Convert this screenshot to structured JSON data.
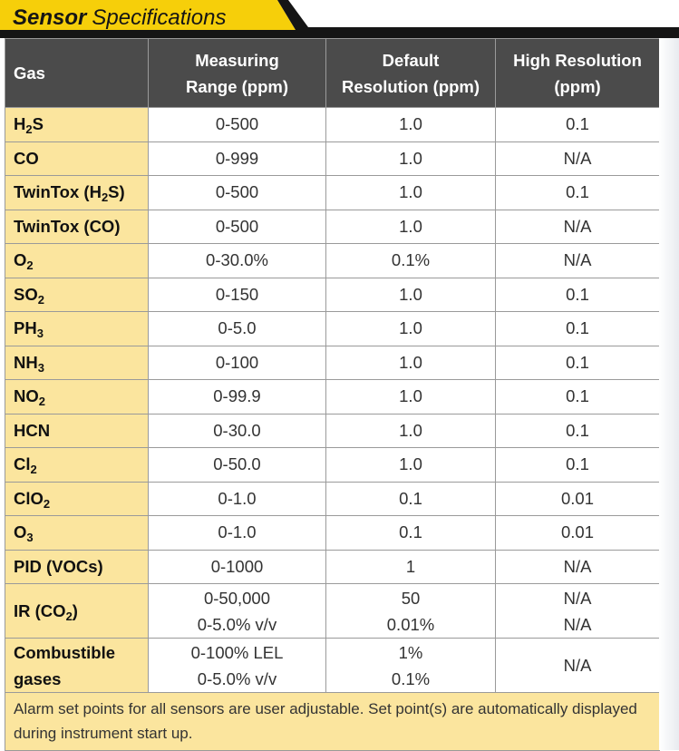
{
  "title": {
    "bold": "Sensor",
    "rest": "Specifications"
  },
  "colors": {
    "header_bg": "#4b4b4b",
    "gas_col_bg": "#fbe59e",
    "banner_yellow": "#f6cf0a",
    "banner_black": "#151515"
  },
  "headers": {
    "gas": "Gas",
    "measuring_range": [
      "Measuring",
      "Range (ppm)"
    ],
    "default_resolution": [
      "Default",
      "Resolution (ppm)"
    ],
    "high_resolution": [
      "High Resolution",
      "(ppm)"
    ]
  },
  "rows": [
    {
      "gas": [
        "H",
        "2",
        "S"
      ],
      "range": [
        "0-500"
      ],
      "default": [
        "1.0"
      ],
      "high": [
        "0.1"
      ]
    },
    {
      "gas": [
        "CO"
      ],
      "range": [
        "0-999"
      ],
      "default": [
        "1.0"
      ],
      "high": [
        "N/A"
      ]
    },
    {
      "gas": [
        "TwinTox (H",
        "2",
        "S)"
      ],
      "range": [
        "0-500"
      ],
      "default": [
        "1.0"
      ],
      "high": [
        "0.1"
      ]
    },
    {
      "gas": [
        "TwinTox (CO)"
      ],
      "range": [
        "0-500"
      ],
      "default": [
        "1.0"
      ],
      "high": [
        "N/A"
      ]
    },
    {
      "gas": [
        "O",
        "2",
        ""
      ],
      "range": [
        "0-30.0%"
      ],
      "default": [
        "0.1%"
      ],
      "high": [
        "N/A"
      ]
    },
    {
      "gas": [
        "SO",
        "2",
        ""
      ],
      "range": [
        "0-150"
      ],
      "default": [
        "1.0"
      ],
      "high": [
        "0.1"
      ]
    },
    {
      "gas": [
        "PH",
        "3",
        ""
      ],
      "range": [
        "0-5.0"
      ],
      "default": [
        "1.0"
      ],
      "high": [
        "0.1"
      ]
    },
    {
      "gas": [
        "NH",
        "3",
        ""
      ],
      "range": [
        "0-100"
      ],
      "default": [
        "1.0"
      ],
      "high": [
        "0.1"
      ]
    },
    {
      "gas": [
        "NO",
        "2",
        ""
      ],
      "range": [
        "0-99.9"
      ],
      "default": [
        "1.0"
      ],
      "high": [
        "0.1"
      ]
    },
    {
      "gas": [
        "HCN"
      ],
      "range": [
        "0-30.0"
      ],
      "default": [
        "1.0"
      ],
      "high": [
        "0.1"
      ]
    },
    {
      "gas": [
        "Cl",
        "2",
        ""
      ],
      "range": [
        "0-50.0"
      ],
      "default": [
        "1.0"
      ],
      "high": [
        "0.1"
      ]
    },
    {
      "gas": [
        "ClO",
        "2",
        ""
      ],
      "range": [
        "0-1.0"
      ],
      "default": [
        "0.1"
      ],
      "high": [
        "0.01"
      ]
    },
    {
      "gas": [
        "O",
        "3",
        ""
      ],
      "range": [
        "0-1.0"
      ],
      "default": [
        "0.1"
      ],
      "high": [
        "0.01"
      ]
    },
    {
      "gas": [
        "PID (VOCs)"
      ],
      "range": [
        "0-1000"
      ],
      "default": [
        "1"
      ],
      "high": [
        "N/A"
      ]
    },
    {
      "gas": [
        "IR (CO",
        "2",
        ")"
      ],
      "range": [
        "0-50,000",
        "0-5.0% v/v"
      ],
      "default": [
        "50",
        "0.01%"
      ],
      "high": [
        "N/A",
        "N/A"
      ]
    },
    {
      "gas_lines": [
        "Combustible",
        "gases"
      ],
      "range": [
        "0-100% LEL",
        "0-5.0% v/v"
      ],
      "default": [
        "1%",
        "0.1%"
      ],
      "high": [
        "N/A"
      ]
    }
  ],
  "footnote": "Alarm set points for all sensors are user adjustable. Set point(s) are automatically displayed during instrument start up."
}
